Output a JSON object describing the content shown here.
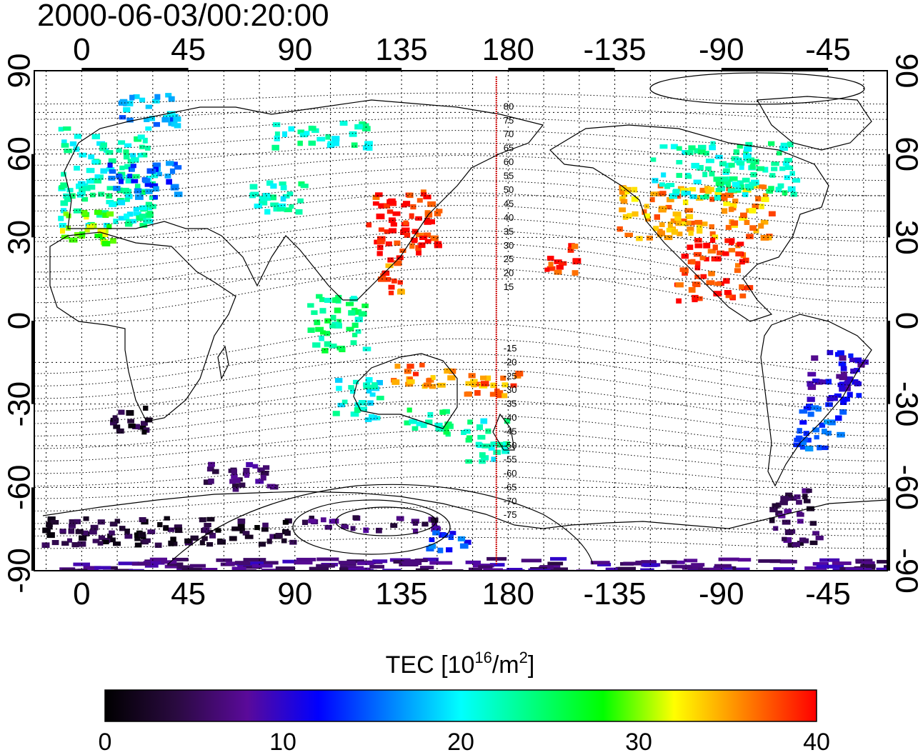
{
  "timestamp": "2000-06-03/00:20:00",
  "x_ticks": [
    "0",
    "45",
    "90",
    "135",
    "180",
    "-135",
    "-90",
    "-45"
  ],
  "y_ticks": [
    "90",
    "60",
    "30",
    "0",
    "-30",
    "-60",
    "-90"
  ],
  "contour_labels_north": [
    "80",
    "75",
    "70",
    "65",
    "60",
    "55",
    "50",
    "45",
    "40",
    "35",
    "30",
    "25",
    "20",
    "15"
  ],
  "contour_labels_south": [
    "-15",
    "-20",
    "-25",
    "-30",
    "-35",
    "-40",
    "-45",
    "-50",
    "-55",
    "-60",
    "-65",
    "-70",
    "-75"
  ],
  "colorbar": {
    "title_prefix": "TEC  [10",
    "title_exp": "16",
    "title_mid": "/m",
    "title_exp2": "2",
    "title_suffix": "]",
    "ticks": [
      "0",
      "10",
      "20",
      "30",
      "40"
    ],
    "min": 0,
    "max": 40
  },
  "colors": {
    "colormap": [
      "#000000",
      "#2a0a40",
      "#5a0a9a",
      "#0000ff",
      "#0080ff",
      "#00ffff",
      "#00ff80",
      "#00ff00",
      "#ffff00",
      "#ff8000",
      "#ff0000"
    ],
    "meridian_line": "#cc0000",
    "frame": "#000000"
  },
  "chart_data": {
    "type": "scatter",
    "title": "2000-06-03/00:20:00",
    "xlabel": "",
    "ylabel": "",
    "xlim": [
      -20,
      340
    ],
    "ylim": [
      -90,
      90
    ],
    "grid": true,
    "value_label": "TEC [10^16/m^2]",
    "value_range": [
      0,
      40
    ],
    "marked_meridian_lon": 175,
    "regions": [
      {
        "lon": [
          -10,
          30
        ],
        "lat": [
          35,
          70
        ],
        "tec": 22
      },
      {
        "lon": [
          -10,
          15
        ],
        "lat": [
          28,
          40
        ],
        "tec": 30
      },
      {
        "lon": [
          10,
          40
        ],
        "lat": [
          45,
          58
        ],
        "tec": 15
      },
      {
        "lon": [
          15,
          40
        ],
        "lat": [
          70,
          82
        ],
        "tec": 17
      },
      {
        "lon": [
          70,
          95
        ],
        "lat": [
          40,
          52
        ],
        "tec": 22
      },
      {
        "lon": [
          80,
          120
        ],
        "lat": [
          63,
          72
        ],
        "tec": 22
      },
      {
        "lon": [
          120,
          150
        ],
        "lat": [
          25,
          48
        ],
        "tec": 39
      },
      {
        "lon": [
          125,
          135
        ],
        "lat": [
          10,
          25
        ],
        "tec": 37
      },
      {
        "lon": [
          95,
          120
        ],
        "lat": [
          -10,
          10
        ],
        "tec": 24
      },
      {
        "lon": [
          105,
          125
        ],
        "lat": [
          -35,
          -20
        ],
        "tec": 21
      },
      {
        "lon": [
          130,
          155
        ],
        "lat": [
          -25,
          -15
        ],
        "tec": 36
      },
      {
        "lon": [
          135,
          155
        ],
        "lat": [
          -40,
          -30
        ],
        "tec": 23
      },
      {
        "lon": [
          160,
          180
        ],
        "lat": [
          -50,
          -35
        ],
        "tec": 22
      },
      {
        "lon": [
          160,
          185
        ],
        "lat": [
          -28,
          -18
        ],
        "tec": 36
      },
      {
        "lon": [
          195,
          210
        ],
        "lat": [
          18,
          28
        ],
        "tec": 39
      },
      {
        "lon": [
          225,
          290
        ],
        "lat": [
          30,
          50
        ],
        "tec": 35
      },
      {
        "lon": [
          240,
          300
        ],
        "lat": [
          45,
          65
        ],
        "tec": 22
      },
      {
        "lon": [
          250,
          280
        ],
        "lat": [
          8,
          30
        ],
        "tec": 39
      },
      {
        "lon": [
          305,
          330
        ],
        "lat": [
          -30,
          -10
        ],
        "tec": 10
      },
      {
        "lon": [
          300,
          320
        ],
        "lat": [
          -45,
          -30
        ],
        "tec": 14
      },
      {
        "lon": [
          290,
          310
        ],
        "lat": [
          -80,
          -60
        ],
        "tec": 5
      },
      {
        "lon": [
          10,
          30
        ],
        "lat": [
          -40,
          -30
        ],
        "tec": 3
      },
      {
        "lon": [
          50,
          80
        ],
        "lat": [
          -60,
          -50
        ],
        "tec": 6
      },
      {
        "lon": [
          -20,
          90
        ],
        "lat": [
          -80,
          -70
        ],
        "tec": 3
      },
      {
        "lon": [
          90,
          150
        ],
        "lat": [
          -75,
          -70
        ],
        "tec": 6
      },
      {
        "lon": [
          145,
          165
        ],
        "lat": [
          -82,
          -75
        ],
        "tec": 14
      },
      {
        "lon": [
          -10,
          340
        ],
        "lat": [
          -90,
          -85
        ],
        "tec": 7
      }
    ]
  }
}
